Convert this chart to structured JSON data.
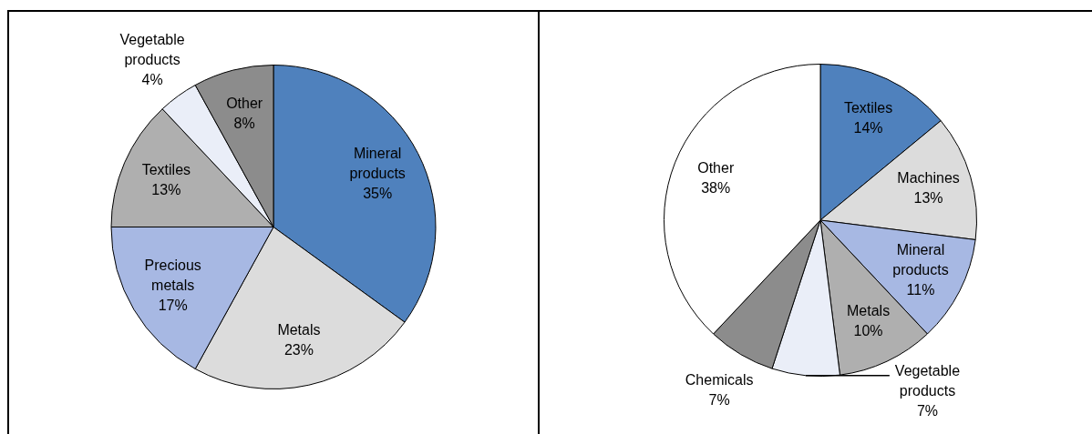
{
  "chart_data": [
    {
      "type": "pie",
      "categories": [
        "Mineral products",
        "Metals",
        "Precious metals",
        "Textiles",
        "Vegetable products",
        "Other"
      ],
      "values": [
        35,
        23,
        17,
        13,
        4,
        8
      ],
      "value_labels": [
        "35%",
        "23%",
        "17%",
        "13%",
        "4%",
        "8%"
      ],
      "colors": [
        "#4f81bd",
        "#dcdcdc",
        "#a7b8e3",
        "#afafaf",
        "#eaeef8",
        "#8c8c8c"
      ]
    },
    {
      "type": "pie",
      "categories": [
        "Textiles",
        "Machines",
        "Mineral products",
        "Metals",
        "Vegetable products",
        "Chemicals",
        "Other"
      ],
      "values": [
        14,
        13,
        11,
        10,
        7,
        7,
        38
      ],
      "value_labels": [
        "14%",
        "13%",
        "11%",
        "10%",
        "7%",
        "7%",
        "38%"
      ],
      "colors": [
        "#4f81bd",
        "#dcdcdc",
        "#a7b8e3",
        "#afafaf",
        "#eaeef8",
        "#8c8c8c",
        "#ffffff"
      ]
    }
  ]
}
